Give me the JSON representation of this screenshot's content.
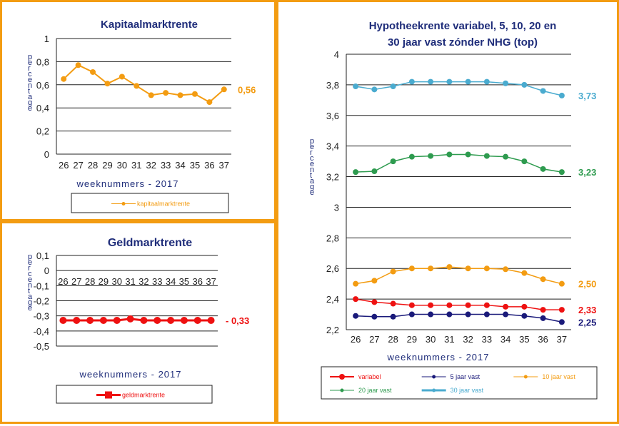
{
  "chart_data": [
    {
      "id": "kap",
      "type": "line",
      "title": "Kapitaalmarktrente",
      "xlabel": "weeknummers - 2017",
      "ylabel": "percentage",
      "categories": [
        "26",
        "27",
        "28",
        "29",
        "30",
        "31",
        "32",
        "33",
        "34",
        "35",
        "36",
        "37"
      ],
      "ylim": [
        0,
        1
      ],
      "yticks": [
        "0",
        "0,2",
        "0,4",
        "0,6",
        "0,8",
        "1"
      ],
      "grid": true,
      "legend_position": "bottom",
      "series": [
        {
          "name": "kapitaalmarktrente",
          "color": "#f39c12",
          "values": [
            0.65,
            0.77,
            0.71,
            0.61,
            0.67,
            0.59,
            0.51,
            0.53,
            0.51,
            0.52,
            0.45,
            0.56
          ],
          "end_label": "0,56",
          "end_label_color": "#f39c12"
        }
      ]
    },
    {
      "id": "geld",
      "type": "line",
      "title": "Geldmarktrente",
      "xlabel": "weeknummers - 2017",
      "ylabel": "percentage",
      "categories": [
        "26",
        "27",
        "28",
        "29",
        "30",
        "31",
        "32",
        "33",
        "34",
        "35",
        "36",
        "37"
      ],
      "ylim": [
        -0.5,
        0.1
      ],
      "yticks": [
        "-0,5",
        "-0,4",
        "-0,3",
        "-0,2",
        "-0,1",
        "0",
        "0,1"
      ],
      "grid": true,
      "legend_position": "bottom",
      "series": [
        {
          "name": "geldmarktrente",
          "color": "#ee1111",
          "values": [
            -0.33,
            -0.33,
            -0.33,
            -0.33,
            -0.33,
            -0.32,
            -0.33,
            -0.33,
            -0.33,
            -0.33,
            -0.33,
            -0.33
          ],
          "end_label": "- 0,33",
          "end_label_color": "#ee1111"
        }
      ]
    },
    {
      "id": "hyp",
      "type": "line",
      "title": "Hypotheekrente variabel, 5, 10, 20 en",
      "subtitle": "30 jaar vast zónder NHG (top)",
      "xlabel": "weeknummers - 2017",
      "ylabel": "percentage",
      "categories": [
        "26",
        "27",
        "28",
        "29",
        "30",
        "31",
        "32",
        "33",
        "34",
        "35",
        "36",
        "37"
      ],
      "ylim": [
        2.2,
        4
      ],
      "yticks": [
        "2,2",
        "2,4",
        "2,6",
        "2,8",
        "3",
        "3,2",
        "3,4",
        "3,6",
        "3,8",
        "4"
      ],
      "grid": true,
      "legend_position": "bottom",
      "series": [
        {
          "name": "variabel",
          "color": "#ee1111",
          "values": [
            2.4,
            2.38,
            2.37,
            2.36,
            2.36,
            2.36,
            2.36,
            2.36,
            2.35,
            2.35,
            2.33,
            2.33
          ],
          "end_label": "2,33",
          "end_label_color": "#ee1111"
        },
        {
          "name": "5 jaar vast",
          "color": "#1a1a7a",
          "values": [
            2.29,
            2.285,
            2.285,
            2.3,
            2.3,
            2.3,
            2.3,
            2.3,
            2.3,
            2.29,
            2.275,
            2.25
          ],
          "end_label": "2,25",
          "end_label_color": "#1a1a7a"
        },
        {
          "name": "10 jaar vast",
          "color": "#f39c12",
          "values": [
            2.5,
            2.52,
            2.58,
            2.6,
            2.6,
            2.61,
            2.6,
            2.6,
            2.595,
            2.57,
            2.53,
            2.5
          ],
          "end_label": "2,50",
          "end_label_color": "#f39c12"
        },
        {
          "name": "20 jaar vast",
          "color": "#2e9b4f",
          "values": [
            3.23,
            3.235,
            3.3,
            3.33,
            3.335,
            3.345,
            3.345,
            3.335,
            3.33,
            3.3,
            3.25,
            3.23
          ],
          "end_label": "3,23",
          "end_label_color": "#2e9b4f"
        },
        {
          "name": "30 jaar vast",
          "color": "#4aabcf",
          "values": [
            3.79,
            3.77,
            3.79,
            3.82,
            3.82,
            3.82,
            3.82,
            3.82,
            3.81,
            3.8,
            3.76,
            3.73
          ],
          "end_label": "3,73",
          "end_label_color": "#4aabcf"
        }
      ]
    }
  ]
}
